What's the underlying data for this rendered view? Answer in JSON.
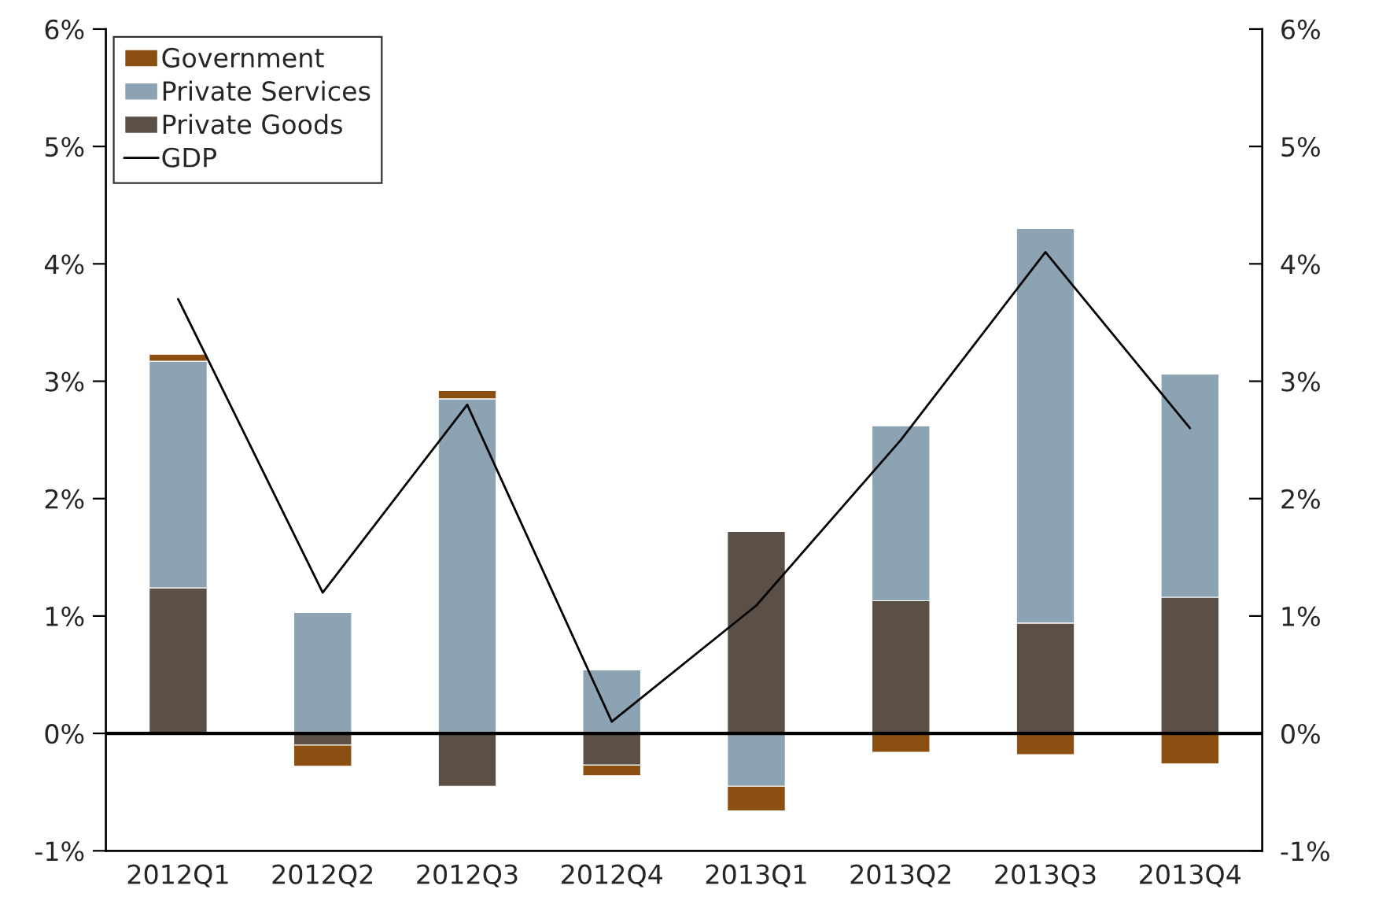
{
  "chart_data": {
    "type": "bar",
    "stacked": true,
    "categories": [
      "2012Q1",
      "2012Q2",
      "2012Q3",
      "2012Q4",
      "2013Q1",
      "2013Q2",
      "2013Q3",
      "2013Q4"
    ],
    "series": [
      {
        "name": "Private Goods",
        "color": "#5c5046",
        "values": [
          1.24,
          -0.1,
          -0.45,
          -0.27,
          1.72,
          1.13,
          0.94,
          1.16
        ]
      },
      {
        "name": "Private Services",
        "color": "#8ba3b2",
        "values": [
          1.93,
          1.03,
          2.85,
          0.54,
          -0.45,
          1.49,
          3.36,
          1.9
        ]
      },
      {
        "name": "Government",
        "color": "#8b4f12",
        "values": [
          0.06,
          -0.18,
          0.07,
          -0.09,
          -0.21,
          -0.16,
          -0.18,
          -0.26
        ]
      },
      {
        "name": "GDP",
        "type": "line",
        "color": "#000000",
        "values": [
          3.7,
          1.2,
          2.8,
          0.1,
          1.09,
          2.5,
          4.1,
          2.6
        ]
      }
    ],
    "ylim": [
      -1,
      6
    ],
    "yticks": [
      {
        "value": -1,
        "label": "-1%"
      },
      {
        "value": 0,
        "label": "0%"
      },
      {
        "value": 1,
        "label": "1%"
      },
      {
        "value": 2,
        "label": "2%"
      },
      {
        "value": 3,
        "label": "3%"
      },
      {
        "value": 4,
        "label": "4%"
      },
      {
        "value": 5,
        "label": "5%"
      },
      {
        "value": 6,
        "label": "6%"
      }
    ],
    "y2lim": [
      -1,
      6
    ],
    "y2ticks": [
      {
        "value": -1,
        "label": "-1%"
      },
      {
        "value": 0,
        "label": "0%"
      },
      {
        "value": 1,
        "label": "1%"
      },
      {
        "value": 2,
        "label": "2%"
      },
      {
        "value": 3,
        "label": "3%"
      },
      {
        "value": 4,
        "label": "4%"
      },
      {
        "value": 5,
        "label": "5%"
      },
      {
        "value": 6,
        "label": "6%"
      }
    ],
    "ref_lines": [
      {
        "axis": "y",
        "value": 0,
        "color": "#000000"
      }
    ],
    "grid": false,
    "legend": "top left"
  }
}
